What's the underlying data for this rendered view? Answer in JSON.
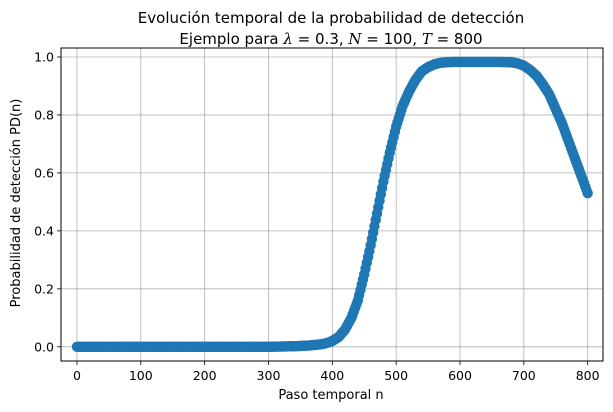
{
  "chart_data": {
    "type": "scatter",
    "title_line1": "Evolución temporal de la probabilidad de detección",
    "title_line2_prefix": "Ejemplo para ",
    "title_lambda": "λ",
    "title_lambda_val": " = 0.3, ",
    "title_N": "N",
    "title_N_val": " = 100, ",
    "title_T": "T",
    "title_T_val": " = 800",
    "xlabel": "Paso temporal n",
    "ylabel": "Probabilidad de detección PD(n)",
    "xlim": [
      -25,
      824
    ],
    "ylim": [
      -0.049,
      1.031
    ],
    "x_ticks": [
      0,
      100,
      200,
      300,
      400,
      500,
      600,
      700,
      800
    ],
    "y_ticks": [
      0.0,
      0.2,
      0.4,
      0.6,
      0.8,
      1.0
    ],
    "x_tick_labels": [
      "0",
      "100",
      "200",
      "300",
      "400",
      "500",
      "600",
      "700",
      "800"
    ],
    "y_tick_labels": [
      "0.0",
      "0.2",
      "0.4",
      "0.6",
      "0.8",
      "1.0"
    ],
    "grid": true,
    "marker_color": "#1f77b4",
    "x": [
      0,
      100,
      200,
      300,
      340,
      360,
      380,
      390,
      400,
      410,
      420,
      430,
      440,
      450,
      460,
      470,
      480,
      490,
      500,
      510,
      520,
      530,
      540,
      550,
      560,
      570,
      580,
      590,
      600,
      620,
      640,
      660,
      680,
      690,
      700,
      710,
      720,
      730,
      740,
      750,
      760,
      770,
      780,
      790,
      800
    ],
    "y": [
      0.0,
      0.0,
      0.0,
      0.0,
      0.002,
      0.004,
      0.008,
      0.012,
      0.02,
      0.034,
      0.06,
      0.1,
      0.16,
      0.25,
      0.35,
      0.46,
      0.57,
      0.67,
      0.76,
      0.83,
      0.88,
      0.92,
      0.95,
      0.965,
      0.975,
      0.98,
      0.982,
      0.983,
      0.983,
      0.983,
      0.983,
      0.983,
      0.982,
      0.978,
      0.97,
      0.955,
      0.935,
      0.905,
      0.87,
      0.82,
      0.77,
      0.71,
      0.65,
      0.59,
      0.53
    ]
  }
}
